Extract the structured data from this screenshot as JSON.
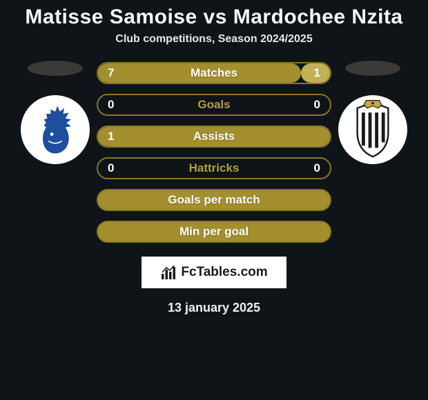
{
  "title": "Matisse Samoise vs Mardochee Nzita",
  "subtitle": "Club competitions, Season 2024/2025",
  "date": "13 january 2025",
  "footer_brand": "FcTables.com",
  "colors": {
    "background": "#0f1419",
    "bar_primary": "#a48f2f",
    "bar_border": "#887726",
    "bar_accent_right": "#c2af58",
    "label_fg": "#ffffff",
    "label_gold": "#b79f3a",
    "flag_ellipse": "#3a3a39",
    "badge_bg": "#ffffff",
    "chief_blue": "#1d4f9e",
    "charleroi_stroke": "#1a1a1a",
    "charleroi_gold": "#c9a63e"
  },
  "left_club": {
    "name": "KAA Gent",
    "icon": "chief-head-icon"
  },
  "right_club": {
    "name": "Sporting Charleroi",
    "icon": "zebra-crest-icon"
  },
  "stats": [
    {
      "label": "Matches",
      "left_value": "7",
      "right_value": "1",
      "left_pct": 87.5,
      "right_pct": 12.5,
      "label_color": "#ffffff",
      "fill_left_color": "#a48f2f",
      "fill_right_color": "#c2af58",
      "bg": "transparent"
    },
    {
      "label": "Goals",
      "left_value": "0",
      "right_value": "0",
      "left_pct": 0,
      "right_pct": 0,
      "label_color": "#b79f3a",
      "fill_left_color": "#a48f2f",
      "fill_right_color": "#a48f2f",
      "bg": "transparent"
    },
    {
      "label": "Assists",
      "left_value": "1",
      "right_value": "",
      "left_pct": 100,
      "right_pct": 0,
      "label_color": "#ffffff",
      "fill_left_color": "#a48f2f",
      "fill_right_color": "#a48f2f",
      "bg": "transparent"
    },
    {
      "label": "Hattricks",
      "left_value": "0",
      "right_value": "0",
      "left_pct": 0,
      "right_pct": 0,
      "label_color": "#b79f3a",
      "fill_left_color": "#a48f2f",
      "fill_right_color": "#a48f2f",
      "bg": "transparent"
    },
    {
      "label": "Goals per match",
      "left_value": "",
      "right_value": "",
      "left_pct": 100,
      "right_pct": 0,
      "label_color": "#ffffff",
      "fill_left_color": "#a48f2f",
      "fill_right_color": "#a48f2f",
      "bg": "#a48f2f"
    },
    {
      "label": "Min per goal",
      "left_value": "",
      "right_value": "",
      "left_pct": 100,
      "right_pct": 0,
      "label_color": "#ffffff",
      "fill_left_color": "#a48f2f",
      "fill_right_color": "#a48f2f",
      "bg": "#a48f2f"
    }
  ]
}
